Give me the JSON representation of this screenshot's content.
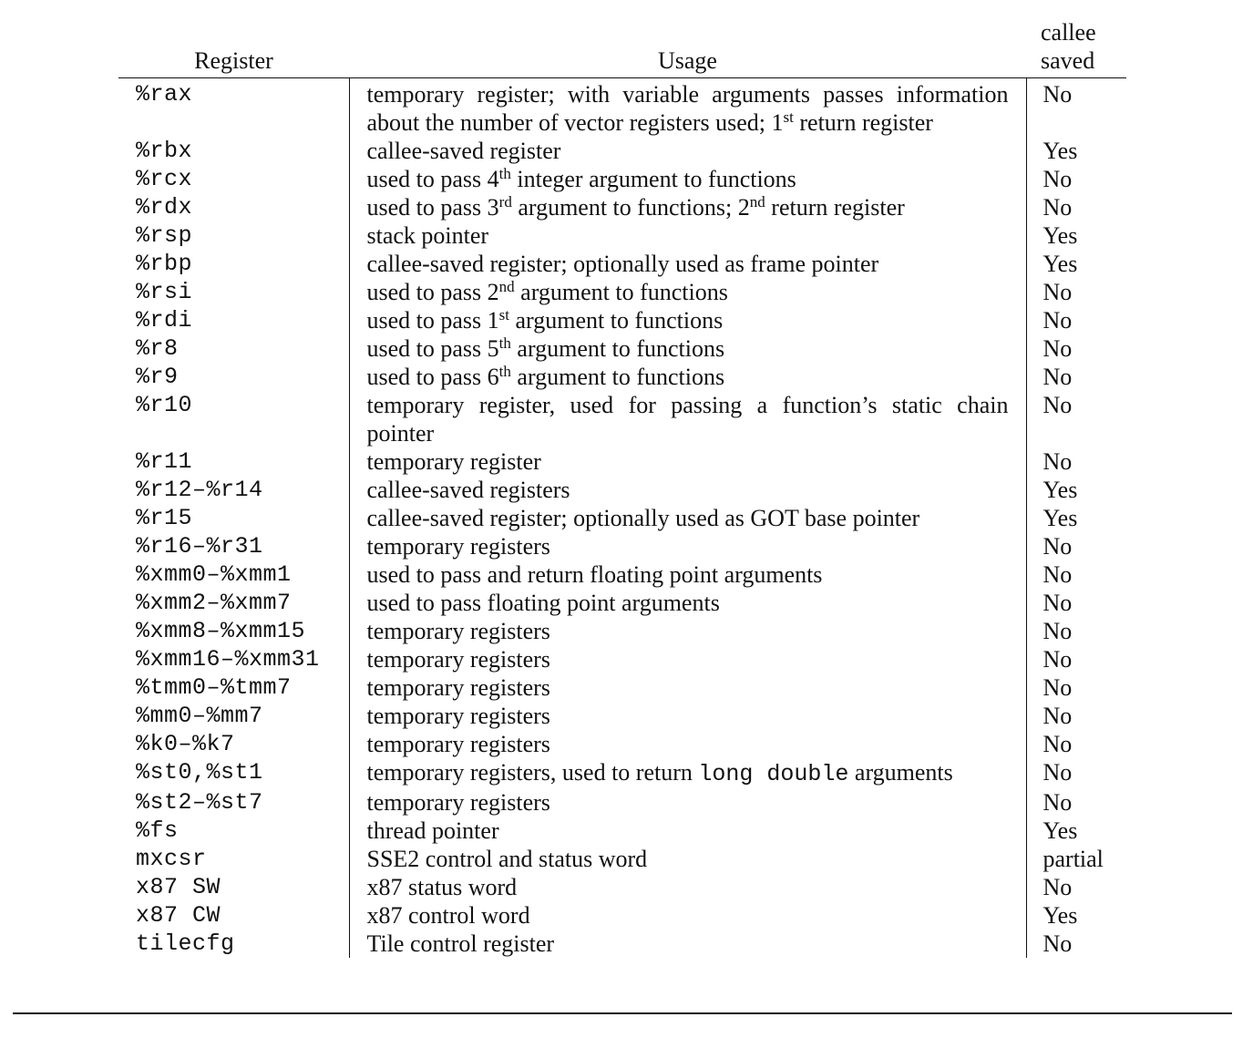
{
  "headers": {
    "register": "Register",
    "usage": "Usage",
    "callee_saved_line1": "callee",
    "callee_saved_line2": "saved"
  },
  "rows": [
    {
      "register": "%rax",
      "usage": [
        {
          "t": "temporary register; with variable arguments passes information about the number of vector registers used; 1"
        },
        {
          "sup": "st"
        },
        {
          "t": " return register"
        }
      ],
      "saved": "No"
    },
    {
      "register": "%rbx",
      "usage": [
        {
          "t": "callee-saved register"
        }
      ],
      "saved": "Yes"
    },
    {
      "register": "%rcx",
      "usage": [
        {
          "t": "used to pass 4"
        },
        {
          "sup": "th"
        },
        {
          "t": " integer argument to functions"
        }
      ],
      "saved": "No"
    },
    {
      "register": "%rdx",
      "usage": [
        {
          "t": "used to pass 3"
        },
        {
          "sup": "rd"
        },
        {
          "t": " argument to functions; 2"
        },
        {
          "sup": "nd"
        },
        {
          "t": " return register"
        }
      ],
      "saved": "No"
    },
    {
      "register": "%rsp",
      "usage": [
        {
          "t": "stack pointer"
        }
      ],
      "saved": "Yes"
    },
    {
      "register": "%rbp",
      "usage": [
        {
          "t": "callee-saved register; optionally used as frame pointer"
        }
      ],
      "saved": "Yes"
    },
    {
      "register": "%rsi",
      "usage": [
        {
          "t": "used to pass 2"
        },
        {
          "sup": "nd"
        },
        {
          "t": " argument to functions"
        }
      ],
      "saved": "No"
    },
    {
      "register": "%rdi",
      "usage": [
        {
          "t": "used to pass 1"
        },
        {
          "sup": "st"
        },
        {
          "t": " argument to functions"
        }
      ],
      "saved": "No"
    },
    {
      "register": "%r8",
      "usage": [
        {
          "t": "used to pass 5"
        },
        {
          "sup": "th"
        },
        {
          "t": " argument to functions"
        }
      ],
      "saved": "No"
    },
    {
      "register": "%r9",
      "usage": [
        {
          "t": "used to pass 6"
        },
        {
          "sup": "th"
        },
        {
          "t": " argument to functions"
        }
      ],
      "saved": "No"
    },
    {
      "register": "%r10",
      "usage": [
        {
          "t": "temporary register, used for passing a function’s static chain pointer"
        }
      ],
      "saved": "No"
    },
    {
      "register": "%r11",
      "usage": [
        {
          "t": "temporary register"
        }
      ],
      "saved": "No"
    },
    {
      "register": "%r12–%r14",
      "usage": [
        {
          "t": "callee-saved registers"
        }
      ],
      "saved": "Yes"
    },
    {
      "register": "%r15",
      "usage": [
        {
          "t": "callee-saved register; optionally used as GOT base pointer"
        }
      ],
      "saved": "Yes"
    },
    {
      "register": "%r16–%r31",
      "usage": [
        {
          "t": "temporary registers"
        }
      ],
      "saved": "No"
    },
    {
      "register": "%xmm0–%xmm1",
      "usage": [
        {
          "t": "used to pass and return floating point arguments"
        }
      ],
      "saved": "No"
    },
    {
      "register": "%xmm2–%xmm7",
      "usage": [
        {
          "t": "used to pass floating point arguments"
        }
      ],
      "saved": "No"
    },
    {
      "register": "%xmm8–%xmm15",
      "usage": [
        {
          "t": "temporary registers"
        }
      ],
      "saved": "No"
    },
    {
      "register": "%xmm16–%xmm31",
      "usage": [
        {
          "t": "temporary registers"
        }
      ],
      "saved": "No"
    },
    {
      "register": "%tmm0–%tmm7",
      "usage": [
        {
          "t": "temporary registers"
        }
      ],
      "saved": "No"
    },
    {
      "register": "%mm0–%mm7",
      "usage": [
        {
          "t": "temporary registers"
        }
      ],
      "saved": "No"
    },
    {
      "register": "%k0–%k7",
      "usage": [
        {
          "t": "temporary registers"
        }
      ],
      "saved": "No"
    },
    {
      "register": "%st0,%st1",
      "usage": [
        {
          "t": "temporary registers, used to return "
        },
        {
          "mono": "long double"
        },
        {
          "t": " arguments"
        }
      ],
      "saved": "No"
    },
    {
      "register": "%st2–%st7",
      "usage": [
        {
          "t": "temporary registers"
        }
      ],
      "saved": "No"
    },
    {
      "register": "%fs",
      "usage": [
        {
          "t": "thread pointer"
        }
      ],
      "saved": "Yes"
    },
    {
      "register": "mxcsr",
      "usage": [
        {
          "t": "SSE2 control and status word"
        }
      ],
      "saved": "partial"
    },
    {
      "register": "x87 SW",
      "usage": [
        {
          "t": "x87 status word"
        }
      ],
      "saved": "No"
    },
    {
      "register": "x87 CW",
      "usage": [
        {
          "t": "x87 control word"
        }
      ],
      "saved": "Yes"
    },
    {
      "register": "tilecfg",
      "usage": [
        {
          "t": "Tile control register"
        }
      ],
      "saved": "No"
    }
  ]
}
